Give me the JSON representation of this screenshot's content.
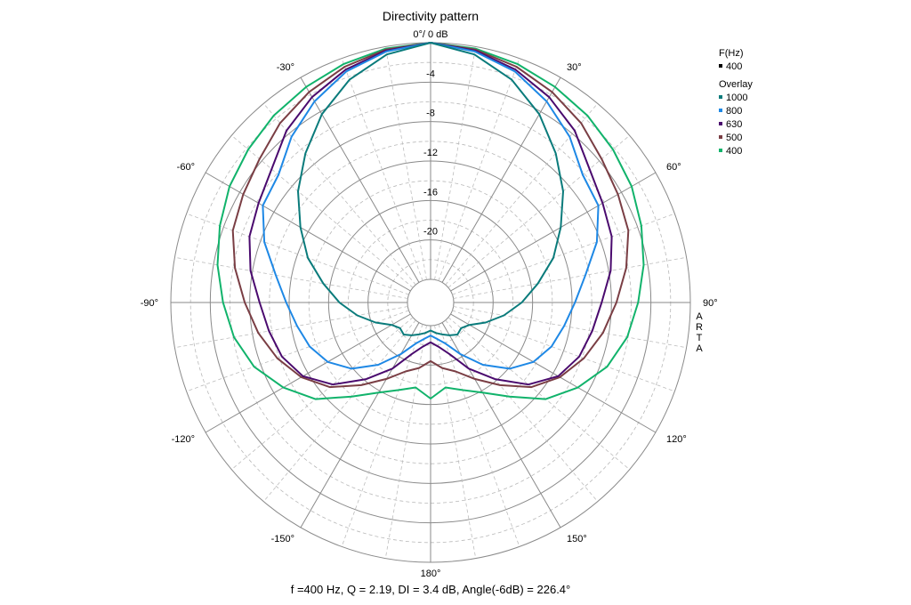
{
  "chart_data": {
    "type": "polar-line",
    "title": "Directivity pattern",
    "radial_axis": {
      "unit": "dB",
      "range": [
        -24,
        0
      ],
      "ticks": [
        0,
        -4,
        -8,
        -12,
        -16,
        -20
      ],
      "tick_labels": [
        "0°/ 0 dB",
        "-4",
        "-8",
        "-12",
        "-16",
        "-20"
      ],
      "minor_step": 2
    },
    "angle_labels": [
      {
        "angle": -180,
        "label": "180°"
      },
      {
        "angle": -150,
        "label": "-150°"
      },
      {
        "angle": -120,
        "label": "-120°"
      },
      {
        "angle": -90,
        "label": "-90°"
      },
      {
        "angle": -60,
        "label": "-60°"
      },
      {
        "angle": -30,
        "label": "-30°"
      },
      {
        "angle": 30,
        "label": "30°"
      },
      {
        "angle": 60,
        "label": "60°"
      },
      {
        "angle": 90,
        "label": "90°"
      },
      {
        "angle": 120,
        "label": "120°"
      },
      {
        "angle": 150,
        "label": "150°"
      }
    ],
    "angle_minor_step": 10,
    "watermark": [
      "A",
      "R",
      "T",
      "A"
    ],
    "legend": {
      "position": "top-right",
      "main_title": "F(Hz)",
      "main_entries": [
        {
          "label": "400",
          "color": "#000000"
        }
      ],
      "overlay_title": "Overlay",
      "overlay_entries": [
        {
          "label": "1000",
          "color": "#0a7b7b"
        },
        {
          "label": "800",
          "color": "#1e88e5"
        },
        {
          "label": "630",
          "color": "#4a0a6e"
        },
        {
          "label": "500",
          "color": "#7a3e44"
        },
        {
          "label": "400",
          "color": "#11b36b"
        }
      ]
    },
    "angles": [
      0,
      10,
      20,
      30,
      40,
      50,
      60,
      70,
      80,
      90,
      100,
      110,
      120,
      130,
      140,
      150,
      160,
      170,
      180
    ],
    "series": [
      {
        "name": "400",
        "color": "#11b36b",
        "values": [
          0,
          -0.2,
          -0.6,
          -1.1,
          -1.6,
          -2.2,
          -2.8,
          -3.6,
          -4.4,
          -5.3,
          -6.1,
          -7.3,
          -9.1,
          -11.1,
          -13.9,
          -15.8,
          -16.9,
          -17.6,
          -16.6
        ]
      },
      {
        "name": "500",
        "color": "#7a3e44",
        "values": [
          0,
          -0.3,
          -0.9,
          -1.7,
          -2.6,
          -3.7,
          -4.4,
          -5.0,
          -6.2,
          -7.5,
          -8.6,
          -9.8,
          -11.2,
          -13.0,
          -15.4,
          -17.4,
          -18.9,
          -19.6,
          -20.4
        ]
      },
      {
        "name": "630",
        "color": "#4a0a6e",
        "values": [
          0,
          -0.4,
          -1.2,
          -2.3,
          -3.6,
          -5.3,
          -6.2,
          -6.8,
          -7.8,
          -9.0,
          -9.7,
          -10.3,
          -11.4,
          -13.4,
          -16.2,
          -18.6,
          -20.8,
          -21.8,
          -22.3
        ]
      },
      {
        "name": "800",
        "color": "#1e88e5",
        "values": [
          0,
          -0.5,
          -1.4,
          -2.8,
          -4.4,
          -6.2,
          -6.7,
          -8.4,
          -10.4,
          -11.7,
          -12.6,
          -13.3,
          -14.3,
          -15.9,
          -18.1,
          -20.3,
          -21.9,
          -22.6,
          -23.0
        ]
      },
      {
        "name": "1000",
        "color": "#0a7b7b",
        "values": [
          0,
          -0.8,
          -2.3,
          -4.3,
          -6.6,
          -8.8,
          -11.1,
          -13.1,
          -15.3,
          -17.1,
          -18.8,
          -20.4,
          -21.8,
          -22.3,
          -22.1,
          -22.5,
          -22.9,
          -23.2,
          -23.5
        ]
      }
    ],
    "footer": "f =400 Hz,  Q =  2.19,  DI =   3.4 dB, Angle(-6dB) = 226.4°"
  }
}
